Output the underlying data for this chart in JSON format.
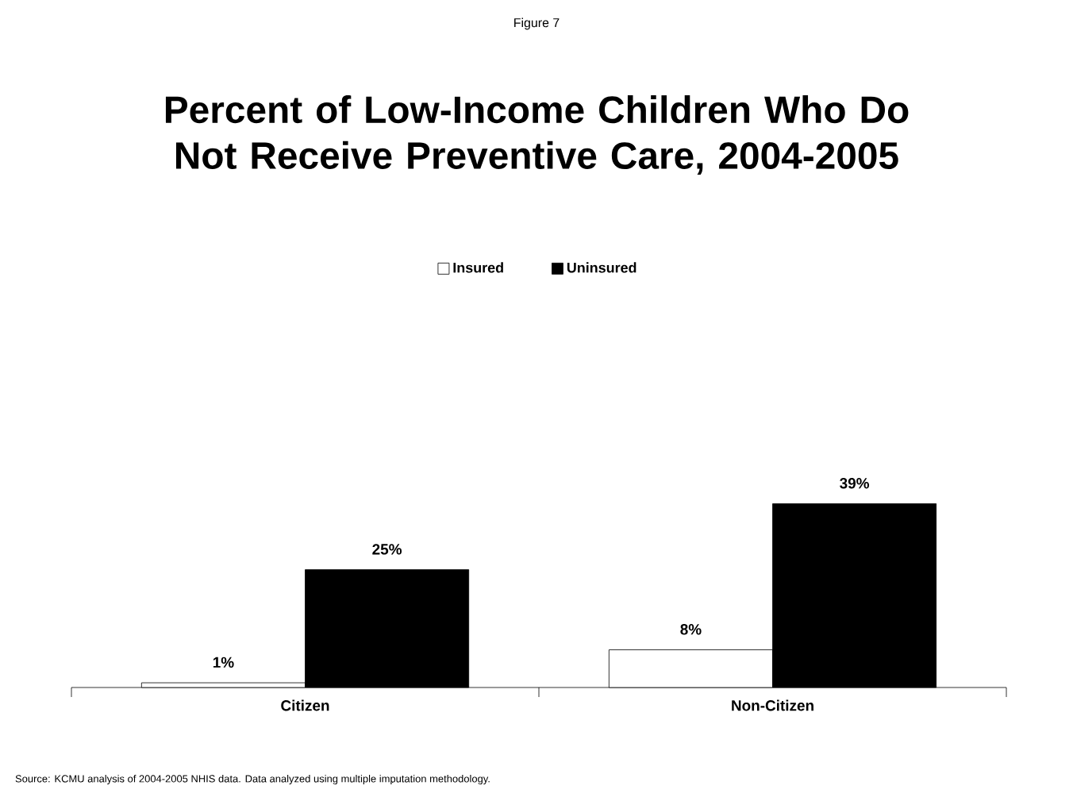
{
  "chart_data": {
    "type": "bar",
    "title": "Percent of Low-Income Children Who Do Not Receive Preventive Care, 2004-2005",
    "categories": [
      "Citizen",
      "Non-Citizen"
    ],
    "series": [
      {
        "name": "Insured",
        "color": "#ffffff",
        "values": [
          1,
          8
        ],
        "value_labels": [
          "1%",
          "8%"
        ]
      },
      {
        "name": "Uninsured",
        "color": "#000000",
        "values": [
          25,
          39
        ],
        "value_labels": [
          "25%",
          "39%"
        ]
      }
    ],
    "legend": "top",
    "grid": false,
    "annotations": [
      "Figure 7",
      "Source: KCMU analysis of 2004-2005 NHIS data. Data analyzed using multiple imputation methodology."
    ]
  }
}
